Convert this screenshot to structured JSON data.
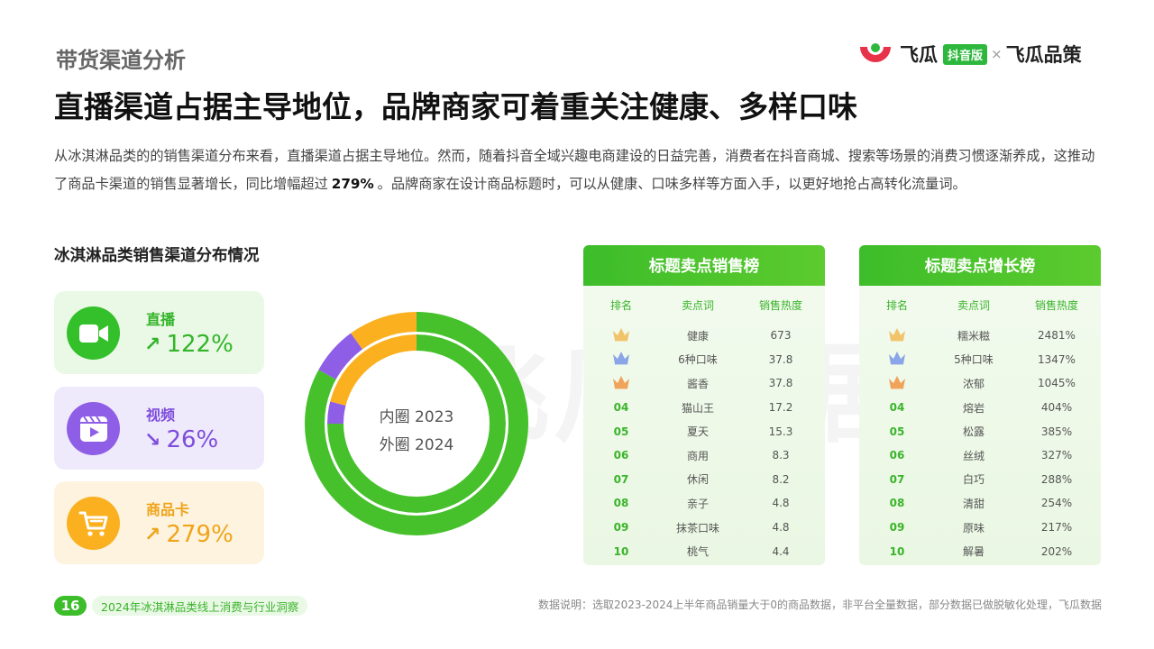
{
  "section_label": "带货渠道分析",
  "logo": {
    "brand1": "飞瓜",
    "badge": "抖音版",
    "separator": "×",
    "brand2": "飞瓜品策"
  },
  "headline": "直播渠道占据主导地位，品牌商家可着重关注健康、多样口味",
  "intro": {
    "part1": "从冰淇淋品类的的销售渠道分布来看，直播渠道占据主导地位。然而，随着抖音全域兴趣电商建设的日益完善，消费者在抖音商城、搜索等场景的消费习惯逐渐养成，这推动了商品卡渠道的销售显著增长，同比增幅超过",
    "highlight": "279%",
    "part2": "。品牌商家在设计商品标题时，可以从健康、口味多样等方面入手，以更好地抢占高转化流量词。"
  },
  "chart_title": "冰淇淋品类销售渠道分布情况",
  "channels": [
    {
      "name": "直播",
      "trend": "up",
      "arrow": "↗",
      "value": "122%",
      "icon": "video-camera-icon",
      "color": "#34c02a"
    },
    {
      "name": "视频",
      "trend": "down",
      "arrow": "↘",
      "value": "26%",
      "icon": "video-play-icon",
      "color": "#8f5ee6"
    },
    {
      "name": "商品卡",
      "trend": "up",
      "arrow": "↗",
      "value": "279%",
      "icon": "shopping-cart-icon",
      "color": "#fbb01f"
    }
  ],
  "chart_data": {
    "type": "pie",
    "style": "double-ring-donut",
    "labels": {
      "inner": "内圈 2023",
      "outer": "外圈 2024"
    },
    "categories": [
      "直播",
      "视频",
      "商品卡"
    ],
    "colors": [
      "#46c12c",
      "#8f5ee6",
      "#fbb01f"
    ],
    "series": [
      {
        "name": "内圈 2023",
        "values": [
          75,
          4,
          21
        ]
      },
      {
        "name": "外圈 2024",
        "values": [
          83,
          7,
          10
        ]
      }
    ]
  },
  "sales_rank": {
    "title": "标题卖点销售榜",
    "headers": [
      "排名",
      "卖点词",
      "销售热度"
    ],
    "rows": [
      {
        "rank": "1",
        "word": "健康",
        "value": "673"
      },
      {
        "rank": "2",
        "word": "6种口味",
        "value": "37.8"
      },
      {
        "rank": "3",
        "word": "酱香",
        "value": "37.8"
      },
      {
        "rank": "04",
        "word": "猫山王",
        "value": "17.2"
      },
      {
        "rank": "05",
        "word": "夏天",
        "value": "15.3"
      },
      {
        "rank": "06",
        "word": "商用",
        "value": "8.3"
      },
      {
        "rank": "07",
        "word": "休闲",
        "value": "8.2"
      },
      {
        "rank": "08",
        "word": "亲子",
        "value": "4.8"
      },
      {
        "rank": "09",
        "word": "抹茶口味",
        "value": "4.8"
      },
      {
        "rank": "10",
        "word": "桃气",
        "value": "4.4"
      }
    ]
  },
  "growth_rank": {
    "title": "标题卖点增长榜",
    "headers": [
      "排名",
      "卖点词",
      "销售热度"
    ],
    "rows": [
      {
        "rank": "1",
        "word": "糯米糍",
        "value": "2481%"
      },
      {
        "rank": "2",
        "word": "5种口味",
        "value": "1347%"
      },
      {
        "rank": "3",
        "word": "浓郁",
        "value": "1045%"
      },
      {
        "rank": "04",
        "word": "熔岩",
        "value": "404%"
      },
      {
        "rank": "05",
        "word": "松露",
        "value": "385%"
      },
      {
        "rank": "06",
        "word": "丝绒",
        "value": "327%"
      },
      {
        "rank": "07",
        "word": "白巧",
        "value": "288%"
      },
      {
        "rank": "08",
        "word": "清甜",
        "value": "254%"
      },
      {
        "rank": "09",
        "word": "原味",
        "value": "217%"
      },
      {
        "rank": "10",
        "word": "解暑",
        "value": "202%"
      }
    ]
  },
  "crown_colors": [
    "#f1c36a",
    "#8aa6e8",
    "#f0a35a"
  ],
  "watermark": "飞瓜数据",
  "footer": {
    "page": "16",
    "report": "2024年冰淇淋品类线上消费与行业洞察",
    "note": "数据说明：选取2023-2024上半年商品销量大于0的商品数据，非平台全量数据，部分数据已做脱敏化处理，飞瓜数据"
  }
}
